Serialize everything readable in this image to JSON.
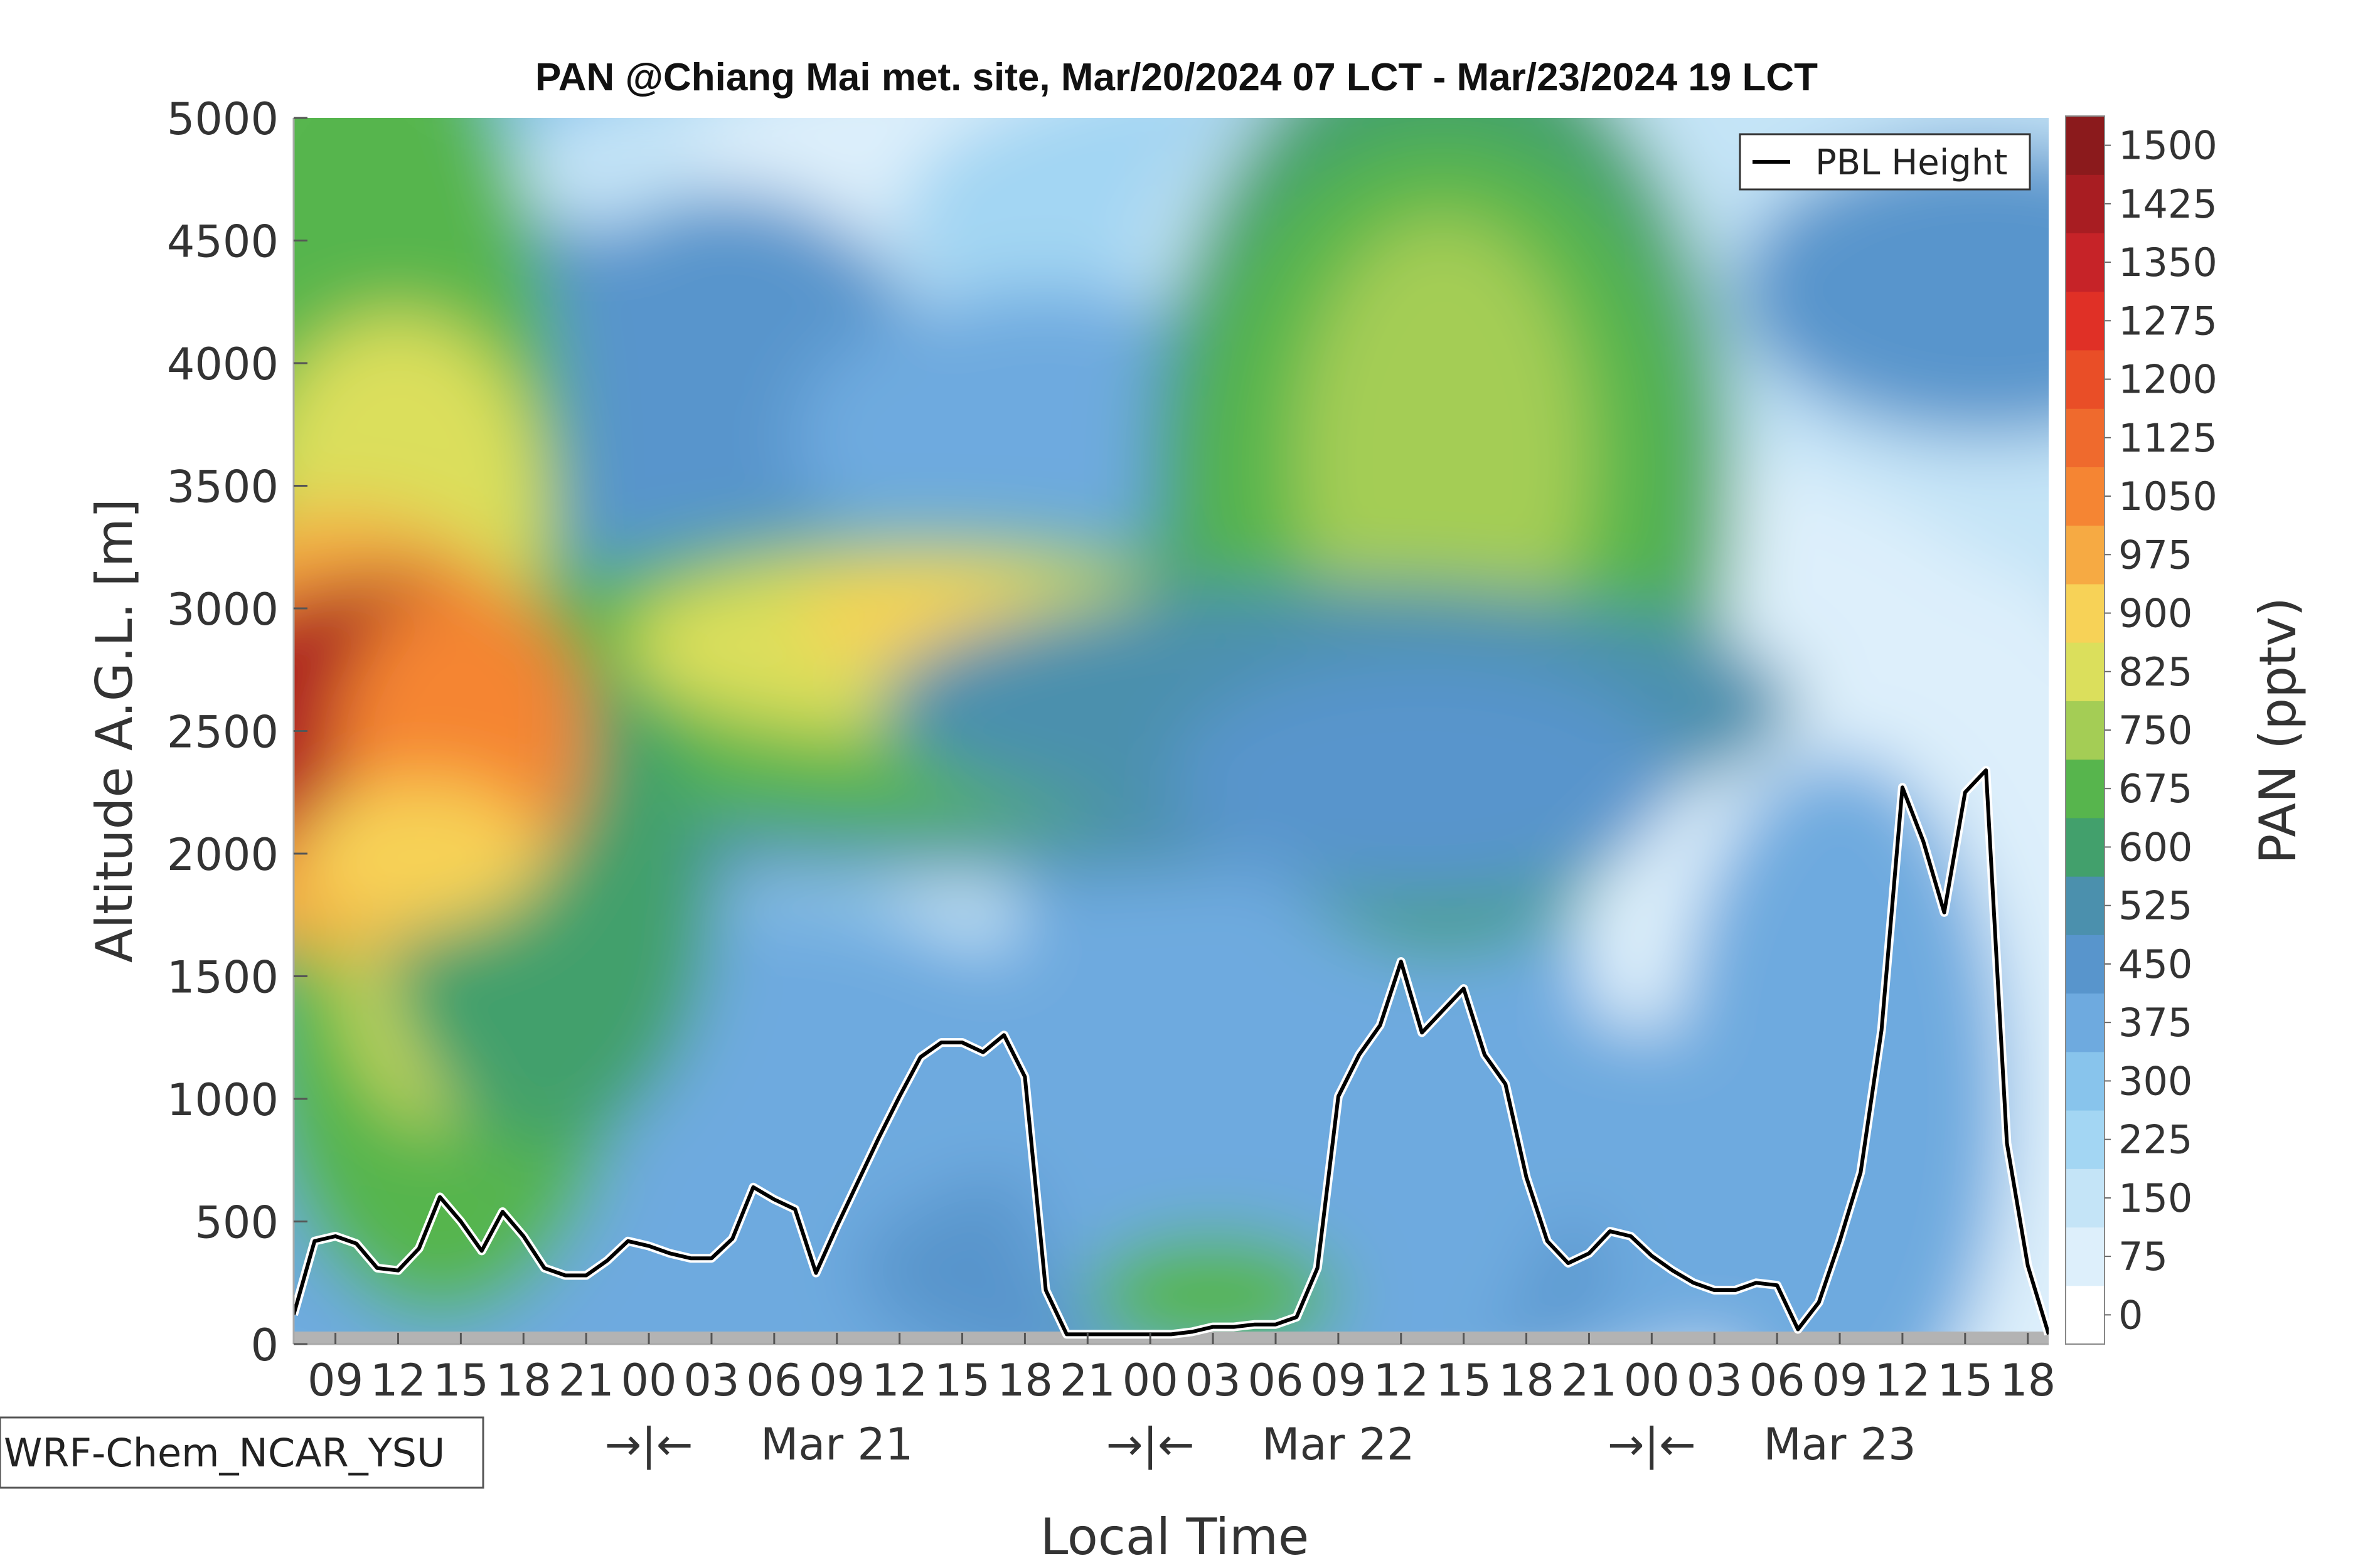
{
  "chart_data": {
    "type": "heatmap",
    "title": "PAN @Chiang Mai met. site, Mar/20/2024 07 LCT - Mar/23/2024 19 LCT",
    "xlabel": "Local Time",
    "ylabel": "Altitude A.G.L. [m]",
    "colorbar_label": "PAN (pptv)",
    "model_label": "WRF-Chem_NCAR_YSU",
    "ylim": [
      0,
      5000
    ],
    "y_ticks": [
      "0",
      "500",
      "1000",
      "1500",
      "2000",
      "2500",
      "3000",
      "3500",
      "4000",
      "4500",
      "5000"
    ],
    "x_hour_ticks": [
      "09",
      "12",
      "15",
      "18",
      "21",
      "00",
      "03",
      "06",
      "09",
      "12",
      "15",
      "18",
      "21",
      "00",
      "03",
      "06",
      "09",
      "12",
      "15",
      "18",
      "21",
      "00",
      "03",
      "06",
      "09",
      "12",
      "15",
      "18"
    ],
    "x_date_labels": [
      "→|←",
      "Mar 21",
      "→|←",
      "Mar 22",
      "→|←",
      "Mar 23"
    ],
    "colorbar_levels": [
      "0",
      "75",
      "150",
      "225",
      "300",
      "375",
      "450",
      "525",
      "600",
      "675",
      "750",
      "825",
      "900",
      "975",
      "1050",
      "1125",
      "1200",
      "1275",
      "1350",
      "1425",
      "1500"
    ],
    "colorbar_colors": [
      "#ffffff",
      "#ddeffb",
      "#c4e4f7",
      "#a3d6f3",
      "#88c4ec",
      "#6eaadf",
      "#5895cc",
      "#4b90ad",
      "#42a06c",
      "#57b54d",
      "#a4cd55",
      "#dbdf5c",
      "#f7d257",
      "#f6aa43",
      "#f58533",
      "#ef6a2d",
      "#e94e27",
      "#e03026",
      "#c62328",
      "#a81d22",
      "#8b1a1c"
    ],
    "legend": {
      "label": "PBL Height",
      "position": "top-right"
    },
    "pbl_height": {
      "x_hours": [
        0,
        1,
        2,
        3,
        4,
        5,
        6,
        7,
        8,
        9,
        10,
        11,
        12,
        13,
        14,
        15,
        16,
        17,
        18,
        19,
        20,
        21,
        22,
        23,
        24,
        25,
        26,
        27,
        28,
        29,
        30,
        31,
        32,
        33,
        34,
        35,
        36,
        37,
        38,
        39,
        40,
        41,
        42,
        43,
        44,
        45,
        46,
        47,
        48,
        49,
        50,
        51,
        52,
        53,
        54,
        55,
        56,
        57,
        58,
        59,
        60,
        61,
        62,
        63,
        64,
        65,
        66,
        67,
        68,
        69,
        70,
        71,
        72,
        73,
        74,
        75,
        76,
        77,
        78,
        79,
        80,
        81,
        82,
        83,
        84
      ],
      "values": [
        120,
        420,
        440,
        410,
        310,
        300,
        390,
        600,
        500,
        380,
        540,
        440,
        310,
        280,
        280,
        340,
        420,
        400,
        370,
        350,
        350,
        430,
        640,
        590,
        550,
        290,
        480,
        660,
        840,
        1010,
        1170,
        1230,
        1230,
        1190,
        1260,
        1090,
        220,
        40,
        40,
        40,
        40,
        40,
        40,
        50,
        70,
        70,
        80,
        80,
        110,
        310,
        1010,
        1180,
        1300,
        1560,
        1270,
        1360,
        1450,
        1180,
        1060,
        680,
        420,
        330,
        370,
        460,
        440,
        360,
        300,
        250,
        220,
        220,
        250,
        240,
        60,
        170,
        420,
        700,
        1280,
        2270,
        2050,
        1760,
        2250,
        2340,
        820,
        320,
        40
      ]
    }
  }
}
